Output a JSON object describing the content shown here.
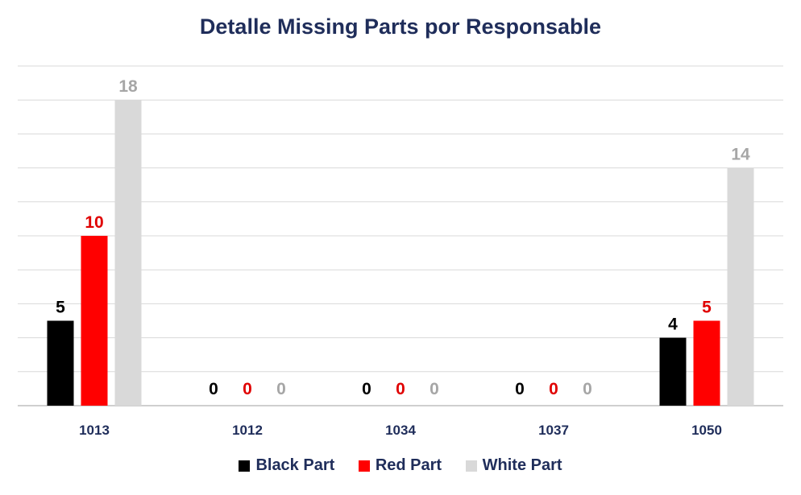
{
  "chart_data": {
    "type": "bar",
    "title": "Detalle Missing Parts por Responsable",
    "xlabel": "",
    "ylabel": "",
    "categories": [
      "1013",
      "1012",
      "1034",
      "1037",
      "1050"
    ],
    "series": [
      {
        "name": "Black Part",
        "color": "#000000",
        "label_color": "#000000",
        "values": [
          5,
          0,
          0,
          0,
          4
        ]
      },
      {
        "name": "Red Part",
        "color": "#ff0000",
        "label_color": "#e00000",
        "values": [
          10,
          0,
          0,
          0,
          5
        ]
      },
      {
        "name": "White Part",
        "color": "#d9d9d9",
        "label_color": "#a6a6a6",
        "values": [
          18,
          0,
          0,
          0,
          14
        ]
      }
    ],
    "ylim": [
      0,
      20
    ],
    "gridlines": true,
    "y_tick_labels_visible": false,
    "data_labels": true,
    "legend_position": "bottom"
  }
}
